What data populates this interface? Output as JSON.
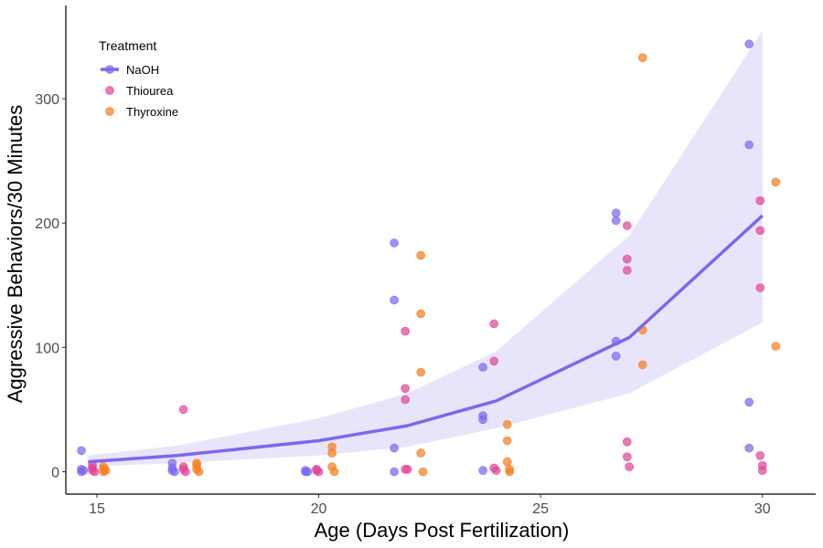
{
  "chart_data": {
    "type": "scatter",
    "xlabel": "Age (Days Post Fertilization)",
    "ylabel": "Aggressive Behaviors/30 Minutes",
    "xlim": [
      14.3,
      31.2
    ],
    "ylim": [
      -18,
      375
    ],
    "x_ticks": [
      15,
      20,
      25,
      30
    ],
    "y_ticks": [
      0,
      100,
      200,
      300
    ],
    "grid": false,
    "legend": {
      "title": "Treatment",
      "position": "top-left",
      "entries": [
        "NaOH",
        "Thiourea",
        "Thyroxine"
      ]
    },
    "colors": {
      "NaOH": "#7b68ee",
      "Thiourea": "#e0469a",
      "Thyroxine": "#f57e20",
      "band": "#e8e5fb"
    },
    "trend": {
      "series": "NaOH",
      "x": [
        14.8,
        16.8,
        20.0,
        22.0,
        24.0,
        27.0,
        30.0
      ],
      "y": [
        8,
        13,
        25,
        37,
        57,
        108,
        206
      ],
      "ci_lower": [
        4,
        7,
        13,
        20,
        35,
        63,
        120
      ],
      "ci_upper": [
        13,
        21,
        43,
        63,
        97,
        190,
        355
      ]
    },
    "series": [
      {
        "name": "NaOH",
        "points": [
          [
            14.65,
            17
          ],
          [
            14.65,
            2
          ],
          [
            14.65,
            0
          ],
          [
            14.7,
            1
          ],
          [
            16.7,
            7
          ],
          [
            16.7,
            3
          ],
          [
            16.7,
            1
          ],
          [
            16.75,
            0
          ],
          [
            19.7,
            1
          ],
          [
            19.7,
            0
          ],
          [
            19.75,
            0
          ],
          [
            21.7,
            184
          ],
          [
            21.7,
            138
          ],
          [
            21.7,
            19
          ],
          [
            21.7,
            0
          ],
          [
            23.7,
            84
          ],
          [
            23.7,
            45
          ],
          [
            23.7,
            42
          ],
          [
            23.7,
            1
          ],
          [
            26.7,
            208
          ],
          [
            26.7,
            202
          ],
          [
            26.7,
            105
          ],
          [
            26.7,
            93
          ],
          [
            29.7,
            344
          ],
          [
            29.7,
            263
          ],
          [
            29.7,
            56
          ],
          [
            29.7,
            19
          ]
        ]
      },
      {
        "name": "Thiourea",
        "points": [
          [
            14.9,
            5
          ],
          [
            14.9,
            3
          ],
          [
            14.9,
            1
          ],
          [
            14.95,
            0
          ],
          [
            16.95,
            50
          ],
          [
            16.95,
            4
          ],
          [
            16.95,
            2
          ],
          [
            17.0,
            0
          ],
          [
            19.95,
            2
          ],
          [
            19.95,
            1
          ],
          [
            20.0,
            0
          ],
          [
            21.95,
            113
          ],
          [
            21.95,
            67
          ],
          [
            21.95,
            58
          ],
          [
            21.95,
            2
          ],
          [
            22.0,
            2
          ],
          [
            23.95,
            119
          ],
          [
            23.95,
            89
          ],
          [
            23.95,
            3
          ],
          [
            24.0,
            1
          ],
          [
            26.95,
            198
          ],
          [
            26.95,
            171
          ],
          [
            26.95,
            162
          ],
          [
            26.95,
            24
          ],
          [
            26.95,
            12
          ],
          [
            27.0,
            4
          ],
          [
            29.95,
            218
          ],
          [
            29.95,
            194
          ],
          [
            29.95,
            148
          ],
          [
            29.95,
            13
          ],
          [
            30.0,
            5
          ],
          [
            30.0,
            1
          ]
        ]
      },
      {
        "name": "Thyroxine",
        "points": [
          [
            15.15,
            4
          ],
          [
            15.15,
            2
          ],
          [
            15.15,
            0
          ],
          [
            15.2,
            1
          ],
          [
            17.25,
            7
          ],
          [
            17.25,
            5
          ],
          [
            17.25,
            2
          ],
          [
            17.3,
            0
          ],
          [
            20.3,
            20
          ],
          [
            20.3,
            15
          ],
          [
            20.3,
            4
          ],
          [
            20.35,
            0
          ],
          [
            22.3,
            174
          ],
          [
            22.3,
            127
          ],
          [
            22.3,
            80
          ],
          [
            22.3,
            15
          ],
          [
            22.35,
            0
          ],
          [
            24.25,
            38
          ],
          [
            24.25,
            25
          ],
          [
            24.25,
            8
          ],
          [
            24.3,
            2
          ],
          [
            24.3,
            0
          ],
          [
            27.3,
            333
          ],
          [
            27.3,
            114
          ],
          [
            27.3,
            86
          ],
          [
            30.3,
            233
          ],
          [
            30.3,
            101
          ]
        ]
      }
    ]
  }
}
